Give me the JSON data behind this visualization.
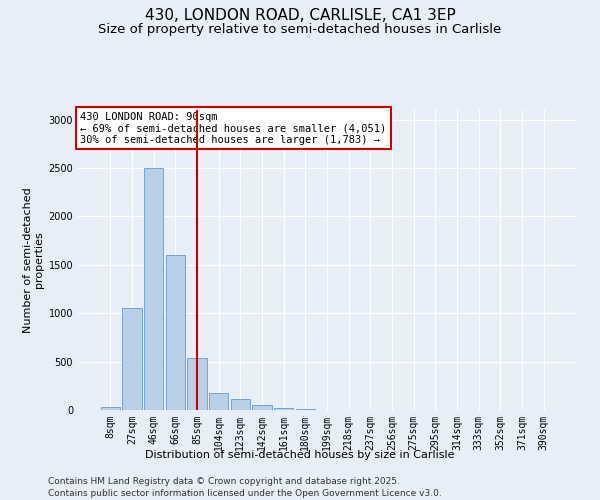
{
  "title1": "430, LONDON ROAD, CARLISLE, CA1 3EP",
  "title2": "Size of property relative to semi-detached houses in Carlisle",
  "xlabel": "Distribution of semi-detached houses by size in Carlisle",
  "ylabel": "Number of semi-detached\nproperties",
  "categories": [
    "8sqm",
    "27sqm",
    "46sqm",
    "66sqm",
    "85sqm",
    "104sqm",
    "123sqm",
    "142sqm",
    "161sqm",
    "180sqm",
    "199sqm",
    "218sqm",
    "237sqm",
    "256sqm",
    "275sqm",
    "295sqm",
    "314sqm",
    "333sqm",
    "352sqm",
    "371sqm",
    "390sqm"
  ],
  "values": [
    30,
    1050,
    2500,
    1600,
    540,
    175,
    110,
    55,
    25,
    8,
    4,
    2,
    1,
    1,
    0,
    0,
    0,
    0,
    0,
    0,
    0
  ],
  "bar_color": "#b8cfe8",
  "bar_edge_color": "#6699cc",
  "vline_pos": 4.5,
  "vline_color": "#cc0000",
  "annotation_text": "430 LONDON ROAD: 90sqm\n← 69% of semi-detached houses are smaller (4,051)\n30% of semi-detached houses are larger (1,783) →",
  "annotation_box_color": "#ffffff",
  "annotation_box_edge": "#cc0000",
  "background_color": "#e8eef7",
  "plot_bg_color": "#e8eef7",
  "ylim": [
    0,
    3100
  ],
  "yticks": [
    0,
    500,
    1000,
    1500,
    2000,
    2500,
    3000
  ],
  "footer1": "Contains HM Land Registry data © Crown copyright and database right 2025.",
  "footer2": "Contains public sector information licensed under the Open Government Licence v3.0.",
  "title_fontsize": 11,
  "subtitle_fontsize": 9.5,
  "tick_fontsize": 7,
  "label_fontsize": 8,
  "footer_fontsize": 6.5,
  "annotation_fontsize": 7.5
}
